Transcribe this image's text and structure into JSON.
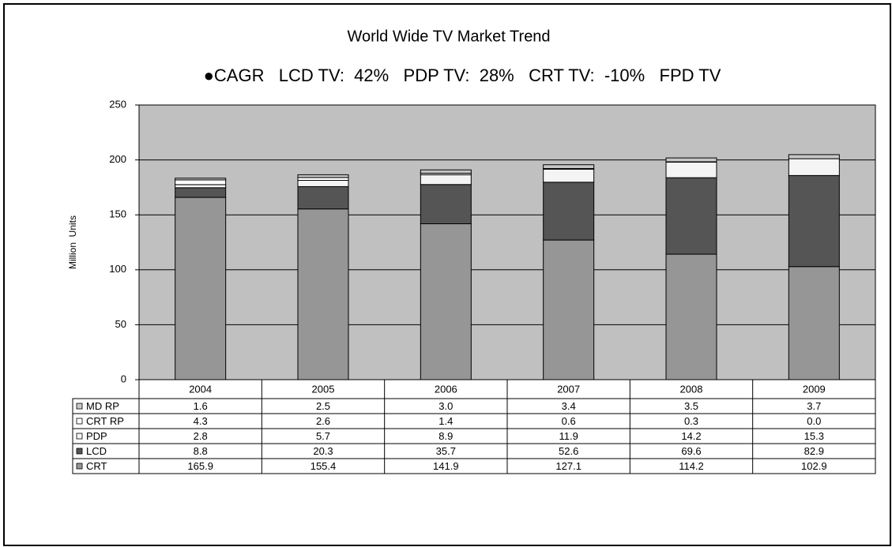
{
  "chart_data": {
    "type": "stacked_bar",
    "title": "World Wide TV Market Trend",
    "subtitle": "●CAGR   LCD TV:  42%   PDP TV:  28%   CRT TV:  -10%   FPD TV",
    "y_label": "Million  Units",
    "categories": [
      "2004",
      "2005",
      "2006",
      "2007",
      "2008",
      "2009"
    ],
    "series": [
      {
        "name": "MD RP",
        "color": "#c8c8c8",
        "values": [
          1.6,
          2.5,
          3.0,
          3.4,
          3.5,
          3.7
        ],
        "value_labels": [
          "1.6",
          "2.5",
          "3.0",
          "3.4",
          "3.5",
          "3.7"
        ]
      },
      {
        "name": "CRT RP",
        "color": "#ffffff",
        "values": [
          4.3,
          2.6,
          1.4,
          0.6,
          0.3,
          0.0
        ],
        "value_labels": [
          "4.3",
          "2.6",
          "1.4",
          "0.6",
          "0.3",
          "0.0"
        ]
      },
      {
        "name": "PDP",
        "color": "#f4f4f4",
        "values": [
          2.8,
          5.7,
          8.9,
          11.9,
          14.2,
          15.3
        ],
        "value_labels": [
          "2.8",
          "5.7",
          "8.9",
          "11.9",
          "14.2",
          "15.3"
        ]
      },
      {
        "name": "LCD",
        "color": "#555555",
        "values": [
          8.8,
          20.3,
          35.7,
          52.6,
          69.6,
          82.9
        ],
        "value_labels": [
          "8.8",
          "20.3",
          "35.7",
          "52.6",
          "69.6",
          "82.9"
        ]
      },
      {
        "name": "CRT",
        "color": "#969696",
        "values": [
          165.9,
          155.4,
          141.9,
          127.1,
          114.2,
          102.9
        ],
        "value_labels": [
          "165.9",
          "155.4",
          "141.9",
          "127.1",
          "114.2",
          "102.9"
        ]
      }
    ],
    "ylim": [
      0,
      250
    ],
    "yticks": [
      0,
      50,
      100,
      150,
      200,
      250
    ],
    "grid": true,
    "plot_background": "#c0c0c0"
  }
}
